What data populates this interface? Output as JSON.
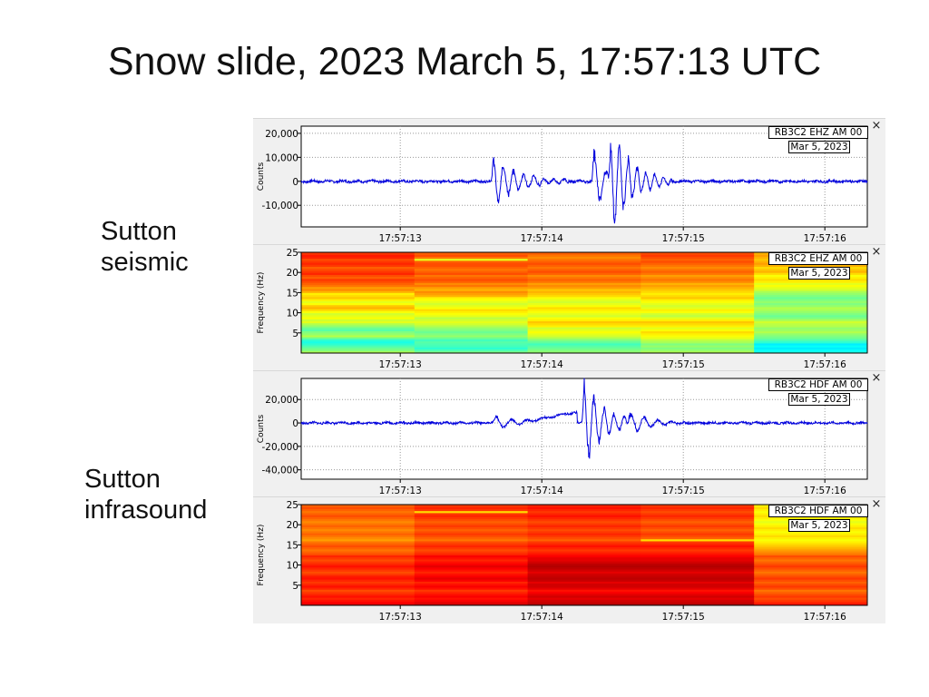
{
  "title": "Snow slide, 2023 March 5, 17:57:13 UTC",
  "labels": {
    "seismic": [
      "Sutton",
      "seismic"
    ],
    "infrasound": [
      "Sutton",
      "infrasound"
    ]
  },
  "close_glyph": "×",
  "chart_data": [
    {
      "type": "line",
      "id": "seismic-waveform",
      "legend": {
        "station": "RB3C2 EHZ AM 00",
        "date": "Mar 5, 2023"
      },
      "xlabel": "",
      "ylabel": "Counts",
      "x_ticks": [
        "17:57:13",
        "17:57:14",
        "17:57:15",
        "17:57:16"
      ],
      "x_range": [
        "17:57:12.3",
        "17:57:16.3"
      ],
      "y_ticks": [
        -10000,
        0,
        10000,
        20000
      ],
      "y_tick_labels": [
        "-10,000",
        "0",
        "10,000",
        "20,000"
      ],
      "ylim": [
        -19000,
        23000
      ],
      "line_color": "#0000dd",
      "events": [
        {
          "t": 13.64,
          "amp": 10000,
          "dur": 0.55,
          "freq": 14
        },
        {
          "t": 14.35,
          "amp": 14000,
          "dur": 0.25,
          "freq": 12
        },
        {
          "t": 14.47,
          "amp": 21000,
          "dur": 0.45,
          "freq": 16
        }
      ],
      "noise": 500
    },
    {
      "type": "heatmap",
      "id": "seismic-spectrogram",
      "legend": {
        "station": "RB3C2 EHZ AM 00",
        "date": "Mar 5, 2023"
      },
      "ylabel": "Frequency (Hz)",
      "x_ticks": [
        "17:57:13",
        "17:57:14",
        "17:57:15",
        "17:57:16"
      ],
      "y_ticks": [
        5,
        10,
        15,
        20,
        25
      ],
      "ylim": [
        0,
        25
      ],
      "colormap": "jet",
      "time_bins": 5,
      "freq_bins": 50,
      "columns": [
        [
          0.55,
          0.5,
          0.48,
          0.45,
          0.42,
          0.4,
          0.42,
          0.48,
          0.55,
          0.52,
          0.5,
          0.46,
          0.48,
          0.52,
          0.55,
          0.6,
          0.58,
          0.62,
          0.6,
          0.58,
          0.62,
          0.66,
          0.7,
          0.68,
          0.62,
          0.6,
          0.64,
          0.68,
          0.66,
          0.64,
          0.7,
          0.74,
          0.72,
          0.76,
          0.78,
          0.8,
          0.82,
          0.78,
          0.8,
          0.84,
          0.82,
          0.8,
          0.78,
          0.82,
          0.84,
          0.82,
          0.8,
          0.84,
          0.85,
          0.82
        ],
        [
          0.5,
          0.45,
          0.42,
          0.44,
          0.45,
          0.46,
          0.44,
          0.48,
          0.52,
          0.5,
          0.48,
          0.5,
          0.52,
          0.55,
          0.58,
          0.6,
          0.58,
          0.56,
          0.6,
          0.62,
          0.64,
          0.66,
          0.62,
          0.6,
          0.58,
          0.6,
          0.62,
          0.64,
          0.7,
          0.72,
          0.74,
          0.7,
          0.72,
          0.76,
          0.74,
          0.78,
          0.8,
          0.78,
          0.76,
          0.8,
          0.78,
          0.76,
          0.78,
          0.8,
          0.8,
          0.78,
          0.6,
          0.76,
          0.8,
          0.78
        ],
        [
          0.52,
          0.5,
          0.48,
          0.46,
          0.44,
          0.47,
          0.5,
          0.54,
          0.58,
          0.6,
          0.62,
          0.6,
          0.58,
          0.64,
          0.66,
          0.68,
          0.64,
          0.62,
          0.58,
          0.6,
          0.62,
          0.64,
          0.66,
          0.62,
          0.6,
          0.58,
          0.6,
          0.62,
          0.66,
          0.68,
          0.7,
          0.68,
          0.72,
          0.74,
          0.72,
          0.76,
          0.78,
          0.76,
          0.74,
          0.78,
          0.8,
          0.78,
          0.76,
          0.78,
          0.8,
          0.78,
          0.76,
          0.74,
          0.76,
          0.78
        ],
        [
          0.55,
          0.52,
          0.5,
          0.52,
          0.5,
          0.54,
          0.56,
          0.6,
          0.62,
          0.64,
          0.66,
          0.62,
          0.6,
          0.64,
          0.66,
          0.68,
          0.64,
          0.6,
          0.56,
          0.58,
          0.62,
          0.64,
          0.6,
          0.58,
          0.6,
          0.62,
          0.64,
          0.68,
          0.66,
          0.64,
          0.66,
          0.68,
          0.7,
          0.72,
          0.7,
          0.74,
          0.76,
          0.74,
          0.72,
          0.76,
          0.78,
          0.76,
          0.74,
          0.76,
          0.78,
          0.8,
          0.78,
          0.8,
          0.82,
          0.8
        ],
        [
          0.4,
          0.38,
          0.36,
          0.38,
          0.36,
          0.42,
          0.45,
          0.48,
          0.5,
          0.52,
          0.55,
          0.53,
          0.52,
          0.55,
          0.56,
          0.58,
          0.54,
          0.5,
          0.48,
          0.5,
          0.52,
          0.54,
          0.55,
          0.52,
          0.5,
          0.52,
          0.5,
          0.48,
          0.5,
          0.52,
          0.54,
          0.58,
          0.6,
          0.62,
          0.6,
          0.64,
          0.66,
          0.64,
          0.62,
          0.66,
          0.7,
          0.68,
          0.66,
          0.7,
          0.72,
          0.7,
          0.68,
          0.7,
          0.72,
          0.7
        ]
      ]
    },
    {
      "type": "line",
      "id": "infrasound-waveform",
      "legend": {
        "station": "RB3C2 HDF AM 00",
        "date": "Mar 5, 2023"
      },
      "xlabel": "",
      "ylabel": "Counts",
      "x_ticks": [
        "17:57:13",
        "17:57:14",
        "17:57:15",
        "17:57:16"
      ],
      "x_range": [
        "17:57:12.3",
        "17:57:16.3"
      ],
      "y_ticks": [
        -40000,
        -20000,
        0,
        20000
      ],
      "y_tick_labels": [
        "-40,000",
        "-20,000",
        "0",
        "20,000"
      ],
      "ylim": [
        -48000,
        38000
      ],
      "line_color": "#0000dd",
      "events": [
        {
          "t": 13.65,
          "amp": 6000,
          "dur": 0.6,
          "freq": 9,
          "offset": 9000
        },
        {
          "t": 14.28,
          "amp": 38000,
          "dur": 0.4,
          "freq": 14
        },
        {
          "t": 14.6,
          "amp": 12000,
          "dur": 0.4,
          "freq": 10
        }
      ],
      "noise": 900
    },
    {
      "type": "heatmap",
      "id": "infrasound-spectrogram",
      "legend": {
        "station": "RB3C2 HDF AM 00",
        "date": "Mar 5, 2023"
      },
      "ylabel": "Frequency (Hz)",
      "x_ticks": [
        "17:57:13",
        "17:57:14",
        "17:57:15",
        "17:57:16"
      ],
      "y_ticks": [
        5,
        10,
        15,
        20,
        25
      ],
      "ylim": [
        0,
        25
      ],
      "colormap": "jet",
      "time_bins": 5,
      "freq_bins": 50,
      "columns": [
        [
          0.9,
          0.88,
          0.86,
          0.84,
          0.86,
          0.84,
          0.82,
          0.8,
          0.84,
          0.86,
          0.84,
          0.82,
          0.84,
          0.86,
          0.85,
          0.82,
          0.8,
          0.82,
          0.84,
          0.86,
          0.84,
          0.82,
          0.8,
          0.82,
          0.84,
          0.8,
          0.78,
          0.76,
          0.78,
          0.8,
          0.78,
          0.76,
          0.72,
          0.74,
          0.76,
          0.78,
          0.76,
          0.74,
          0.76,
          0.78,
          0.76,
          0.74,
          0.76,
          0.78,
          0.8,
          0.78,
          0.76,
          0.78,
          0.8,
          0.78
        ],
        [
          0.92,
          0.9,
          0.88,
          0.86,
          0.88,
          0.86,
          0.84,
          0.82,
          0.86,
          0.88,
          0.86,
          0.84,
          0.88,
          0.9,
          0.88,
          0.86,
          0.84,
          0.86,
          0.88,
          0.9,
          0.88,
          0.86,
          0.84,
          0.86,
          0.88,
          0.84,
          0.82,
          0.8,
          0.82,
          0.84,
          0.82,
          0.8,
          0.76,
          0.78,
          0.8,
          0.82,
          0.8,
          0.78,
          0.8,
          0.82,
          0.8,
          0.78,
          0.8,
          0.82,
          0.84,
          0.82,
          0.66,
          0.82,
          0.84,
          0.82
        ],
        [
          0.95,
          0.93,
          0.92,
          0.9,
          0.92,
          0.9,
          0.88,
          0.86,
          0.9,
          0.92,
          0.92,
          0.9,
          0.93,
          0.94,
          0.93,
          0.92,
          0.9,
          0.92,
          0.94,
          0.95,
          0.94,
          0.92,
          0.9,
          0.9,
          0.88,
          0.86,
          0.84,
          0.82,
          0.84,
          0.86,
          0.84,
          0.82,
          0.78,
          0.8,
          0.82,
          0.84,
          0.82,
          0.8,
          0.82,
          0.84,
          0.82,
          0.8,
          0.82,
          0.84,
          0.86,
          0.84,
          0.82,
          0.84,
          0.86,
          0.84
        ],
        [
          0.95,
          0.93,
          0.92,
          0.9,
          0.92,
          0.9,
          0.88,
          0.86,
          0.9,
          0.92,
          0.92,
          0.9,
          0.93,
          0.94,
          0.93,
          0.92,
          0.9,
          0.92,
          0.94,
          0.95,
          0.94,
          0.92,
          0.9,
          0.9,
          0.88,
          0.86,
          0.84,
          0.82,
          0.84,
          0.86,
          0.84,
          0.82,
          0.66,
          0.78,
          0.8,
          0.82,
          0.8,
          0.78,
          0.8,
          0.82,
          0.8,
          0.78,
          0.8,
          0.82,
          0.84,
          0.82,
          0.8,
          0.82,
          0.84,
          0.82
        ],
        [
          0.86,
          0.84,
          0.82,
          0.8,
          0.82,
          0.8,
          0.78,
          0.76,
          0.8,
          0.82,
          0.8,
          0.78,
          0.8,
          0.82,
          0.8,
          0.78,
          0.76,
          0.78,
          0.8,
          0.82,
          0.8,
          0.78,
          0.76,
          0.78,
          0.8,
          0.76,
          0.74,
          0.72,
          0.7,
          0.68,
          0.66,
          0.64,
          0.62,
          0.64,
          0.66,
          0.64,
          0.62,
          0.64,
          0.66,
          0.64,
          0.62,
          0.6,
          0.62,
          0.64,
          0.66,
          0.64,
          0.62,
          0.64,
          0.66,
          0.64
        ]
      ]
    }
  ]
}
